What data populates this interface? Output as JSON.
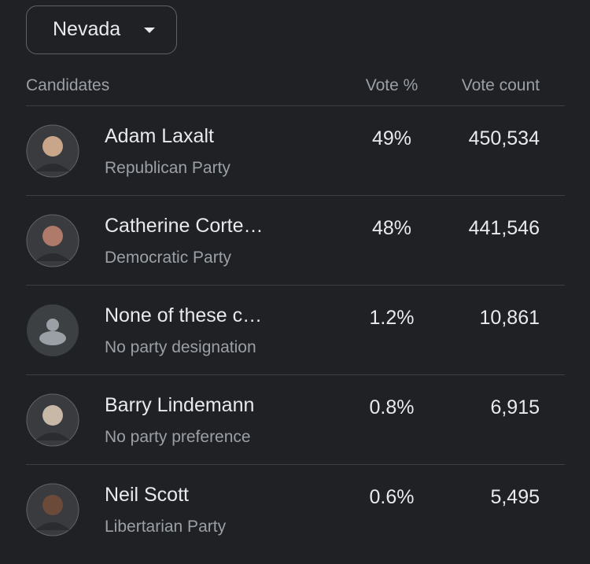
{
  "dropdown": {
    "label": "Nevada"
  },
  "table": {
    "headers": [
      "Candidates",
      "Vote %",
      "Vote count"
    ],
    "rows": [
      {
        "name": "Adam Laxalt",
        "party": "Republican Party",
        "percent": "49%",
        "count": "450,534"
      },
      {
        "name": "Catherine Corte…",
        "party": "Democratic Party",
        "percent": "48%",
        "count": "441,546"
      },
      {
        "name": "None of these c…",
        "party": "No party designation",
        "percent": "1.2%",
        "count": "10,861"
      },
      {
        "name": "Barry Lindemann",
        "party": "No party preference",
        "percent": "0.8%",
        "count": "6,915"
      },
      {
        "name": "Neil Scott",
        "party": "Libertarian Party",
        "percent": "0.6%",
        "count": "5,495"
      }
    ]
  }
}
